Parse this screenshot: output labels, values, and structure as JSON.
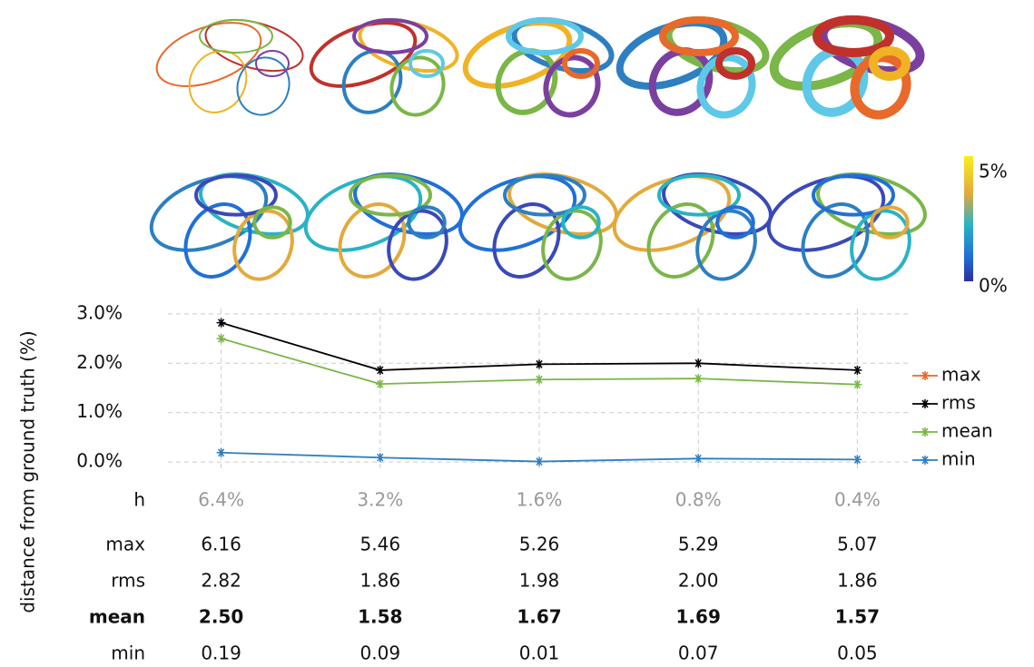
{
  "chart_data": {
    "type": "line",
    "y_label": "distance from ground truth (%)",
    "x_label": "h",
    "categories": [
      "6.4%",
      "3.2%",
      "1.6%",
      "0.8%",
      "0.4%"
    ],
    "series": [
      {
        "name": "max",
        "color": "#e8692a",
        "values": [
          6.16,
          5.46,
          5.26,
          5.29,
          5.07
        ],
        "value_labels": [
          "6.16",
          "5.46",
          "5.26",
          "5.29",
          "5.07"
        ]
      },
      {
        "name": "rms",
        "color": "#000000",
        "values": [
          2.82,
          1.86,
          1.98,
          2.0,
          1.86
        ],
        "value_labels": [
          "2.82",
          "1.86",
          "1.98",
          "2.00",
          "1.86"
        ]
      },
      {
        "name": "mean",
        "color": "#7ab648",
        "values": [
          2.5,
          1.58,
          1.67,
          1.69,
          1.57
        ],
        "value_labels": [
          "2.50",
          "1.58",
          "1.67",
          "1.69",
          "1.57"
        ],
        "bold": true
      },
      {
        "name": "min",
        "color": "#2d7fc1",
        "values": [
          0.19,
          0.09,
          0.01,
          0.07,
          0.05
        ],
        "value_labels": [
          "0.19",
          "0.09",
          "0.01",
          "0.07",
          "0.05"
        ]
      }
    ],
    "ylim": [
      -0.2,
      3.2
    ],
    "yticks": [
      {
        "value": 0,
        "label": "0.0%"
      },
      {
        "value": 1,
        "label": "1.0%"
      },
      {
        "value": 2,
        "label": "2.0%"
      },
      {
        "value": 3,
        "label": "3.0%"
      }
    ],
    "grid": true,
    "legend": "right",
    "colorbar": {
      "labels": [
        "5%",
        "0%"
      ]
    }
  }
}
